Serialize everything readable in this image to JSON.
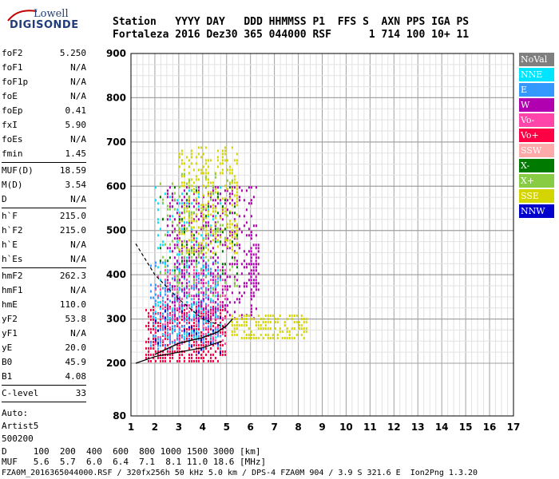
{
  "logo": {
    "line1": "Lowell",
    "line2": "DIGISONDE"
  },
  "header": {
    "row1": "Station   YYYY DAY   DDD HHMMSS P1  FFS S  AXN PPS IGA PS",
    "row2": "Fortaleza 2016 Dez30 365 044000 RSF      1 714 100 10+ 11"
  },
  "params": [
    [
      [
        "foF2",
        "5.250"
      ],
      [
        "foF1",
        "N/A"
      ],
      [
        "foF1p",
        "N/A"
      ],
      [
        "foE",
        "N/A"
      ],
      [
        "foEp",
        "0.41"
      ],
      [
        "fxI",
        "5.90"
      ],
      [
        "foEs",
        "N/A"
      ],
      [
        "fmin",
        "1.45"
      ]
    ],
    [
      [
        "MUF(D)",
        "18.59"
      ],
      [
        "M(D)",
        "3.54"
      ],
      [
        "D",
        "N/A"
      ]
    ],
    [
      [
        "h`F",
        "215.0"
      ],
      [
        "h`F2",
        "215.0"
      ],
      [
        "h`E",
        "N/A"
      ],
      [
        "h`Es",
        "N/A"
      ]
    ],
    [
      [
        "hmF2",
        "262.3"
      ],
      [
        "hmF1",
        "N/A"
      ],
      [
        "hmE",
        "110.0"
      ],
      [
        "yF2",
        "53.8"
      ],
      [
        "yF1",
        "N/A"
      ],
      [
        "yE",
        "20.0"
      ],
      [
        "B0",
        "45.9"
      ],
      [
        "B1",
        "4.08"
      ]
    ],
    [
      [
        "C-level",
        "33"
      ]
    ]
  ],
  "auto": {
    "line1": "Auto:",
    "line2": "Artist5",
    "line3": "500200"
  },
  "legend": [
    {
      "label": "NoVal",
      "color": "#7f7f7f"
    },
    {
      "label": "NNE",
      "color": "#00e5ff"
    },
    {
      "label": "E",
      "color": "#3399ff"
    },
    {
      "label": "W",
      "color": "#b000b0"
    },
    {
      "label": "Vo-",
      "color": "#ff44aa"
    },
    {
      "label": "Vo+",
      "color": "#ff0044"
    },
    {
      "label": "SSW",
      "color": "#ffaaaa"
    },
    {
      "label": "X-",
      "color": "#007a00"
    },
    {
      "label": "X+",
      "color": "#88cc44"
    },
    {
      "label": "SSE",
      "color": "#d4d400"
    },
    {
      "label": "NNW",
      "color": "#0000cc"
    }
  ],
  "footer": {
    "row1": "D     100  200  400  600  800 1000 1500 3000 [km]",
    "row2": "MUF   5.6  5.7  6.0  6.4  7.1  8.1 11.0 18.6 [MHz]",
    "row3": "FZA0M_2016365044000.RSF / 320fx256h 50 kHz 5.0 km / DPS-4 FZA0M 904 / 3.9 S 321.6 E  Ion2Png 1.3.20"
  },
  "chart_data": {
    "type": "scatter",
    "title": "",
    "xlabel": "",
    "ylabel": "",
    "xlim": [
      1,
      17
    ],
    "ylim": [
      80,
      900
    ],
    "xticks": [
      1,
      2,
      3,
      4,
      5,
      6,
      7,
      8,
      9,
      10,
      11,
      12,
      13,
      14,
      15,
      16,
      17
    ],
    "yticks": [
      80,
      200,
      300,
      400,
      500,
      600,
      700,
      800,
      900
    ],
    "y_axis_note": "ylim starts at 80 km; the 80-200 km band is drawn compressed",
    "grid": true,
    "clusters": [
      {
        "series": "Vo+",
        "color": "#ff0044",
        "x": [
          1.6,
          5.0
        ],
        "y": [
          205,
          330
        ],
        "density": 0.55
      },
      {
        "series": "Vo-",
        "color": "#ff44aa",
        "x": [
          2.0,
          5.0
        ],
        "y": [
          240,
          420
        ],
        "density": 0.3
      },
      {
        "series": "E",
        "color": "#3399ff",
        "x": [
          1.8,
          4.8
        ],
        "y": [
          230,
          430
        ],
        "density": 0.3
      },
      {
        "series": "NNE",
        "color": "#00e5ff",
        "x": [
          2.0,
          4.8
        ],
        "y": [
          260,
          600
        ],
        "density": 0.12
      },
      {
        "series": "W",
        "color": "#b000b0",
        "x": [
          2.5,
          6.3
        ],
        "y": [
          300,
          600
        ],
        "density": 0.25
      },
      {
        "series": "SSE",
        "color": "#d4d400",
        "x": [
          3.0,
          5.5
        ],
        "y": [
          450,
          690
        ],
        "density": 0.3
      },
      {
        "series": "SSE",
        "color": "#d4d400",
        "x": [
          5.2,
          8.4
        ],
        "y": [
          255,
          310
        ],
        "density": 0.5
      },
      {
        "series": "X+",
        "color": "#88cc44",
        "x": [
          2.2,
          5.5
        ],
        "y": [
          350,
          630
        ],
        "density": 0.1
      },
      {
        "series": "X-",
        "color": "#007a00",
        "x": [
          2.2,
          5.5
        ],
        "y": [
          400,
          600
        ],
        "density": 0.05
      },
      {
        "series": "W",
        "color": "#b000b0",
        "x": [
          6.0,
          6.4
        ],
        "y": [
          350,
          470
        ],
        "density": 0.5
      },
      {
        "series": "NNW",
        "color": "#0000cc",
        "x": [
          2.0,
          5.0
        ],
        "y": [
          220,
          320
        ],
        "density": 0.06
      }
    ],
    "trace_solid": [
      [
        1.2,
        200
      ],
      [
        2.0,
        215
      ],
      [
        3.0,
        225
      ],
      [
        4.0,
        235
      ],
      [
        4.8,
        250
      ]
    ],
    "trace_dashed": [
      [
        1.2,
        470
      ],
      [
        2.0,
        400
      ],
      [
        3.0,
        345
      ],
      [
        4.0,
        300
      ],
      [
        5.0,
        280
      ]
    ],
    "profile": [
      [
        2.0,
        220
      ],
      [
        3.0,
        245
      ],
      [
        4.0,
        258
      ],
      [
        4.6,
        270
      ],
      [
        5.0,
        285
      ],
      [
        5.25,
        300
      ]
    ]
  }
}
